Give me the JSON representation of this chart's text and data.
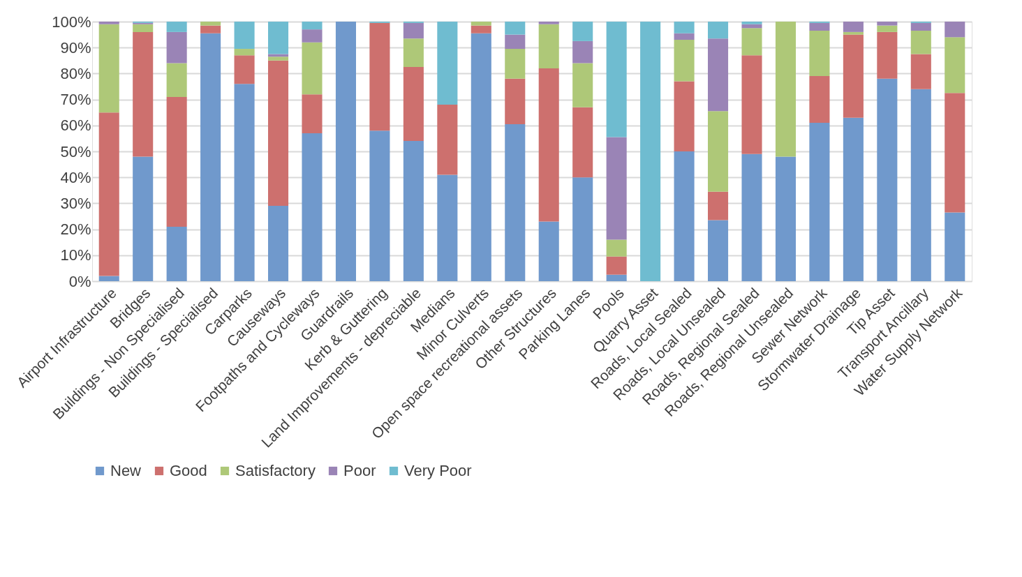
{
  "chart_data": {
    "type": "bar",
    "stacked": true,
    "categories": [
      "Airport Infrastructure",
      "Bridges",
      "Buildings - Non Specialised",
      "Buildings - Specialised",
      "Carparks",
      "Causeways",
      "Footpaths and Cycleways",
      "Guardrails",
      "Kerb & Guttering",
      "Land Improvements - depreciable",
      "Medians",
      "Minor Culverts",
      "Open space recreational assets",
      "Other Structures",
      "Parking Lanes",
      "Pools",
      "Quarry Asset",
      "Roads, Local Sealed",
      "Roads, Local Unsealed",
      "Roads, Regional Sealed",
      "Roads, Regional Unsealed",
      "Sewer Network",
      "Stormwater Drainage",
      "Tip Asset",
      "Transport Ancillary",
      "Water Supply Network"
    ],
    "series": [
      {
        "name": "New",
        "color": "#7099cc",
        "values": [
          2,
          48,
          21,
          95.5,
          76,
          29,
          57,
          100,
          58,
          54,
          41,
          95.5,
          60.5,
          23,
          40,
          2.5,
          0,
          50,
          23.5,
          49,
          48,
          61,
          63,
          78,
          74,
          26.5
        ]
      },
      {
        "name": "Good",
        "color": "#cd706e",
        "values": [
          63,
          48,
          50,
          3,
          11,
          56,
          15,
          0,
          41.5,
          28.5,
          27,
          3,
          17.5,
          59,
          27,
          7,
          0,
          27,
          11,
          38,
          0,
          18,
          32,
          18,
          13.5,
          46
        ]
      },
      {
        "name": "Satisfactory",
        "color": "#aec878",
        "values": [
          34,
          3,
          13,
          1.5,
          2.5,
          1.5,
          20,
          0,
          0,
          11,
          0,
          1.5,
          11.5,
          17,
          17,
          6.5,
          0,
          16,
          31,
          10.5,
          52,
          17.5,
          1,
          2.5,
          9,
          21.5
        ]
      },
      {
        "name": "Poor",
        "color": "#9a84b6",
        "values": [
          1,
          0.5,
          12,
          0,
          0,
          1,
          5,
          0,
          0,
          6,
          0,
          0,
          5.5,
          1,
          8.5,
          39.5,
          0,
          2.5,
          28,
          1.5,
          0,
          3,
          4,
          1.5,
          3,
          6
        ]
      },
      {
        "name": "Very Poor",
        "color": "#6fbcd0",
        "values": [
          0,
          0.5,
          4,
          0,
          10.5,
          12.5,
          3,
          0,
          0.5,
          0.5,
          32,
          0,
          5,
          0,
          7.5,
          44.5,
          100,
          4.5,
          6.5,
          1,
          0,
          0.5,
          0,
          0,
          0.5,
          0
        ]
      }
    ],
    "ylim": [
      0,
      100
    ],
    "yticks": [
      {
        "value": 0,
        "label": "0%"
      },
      {
        "value": 10,
        "label": "10%"
      },
      {
        "value": 20,
        "label": "20%"
      },
      {
        "value": 30,
        "label": "30%"
      },
      {
        "value": 40,
        "label": "40%"
      },
      {
        "value": 50,
        "label": "50%"
      },
      {
        "value": 60,
        "label": "60%"
      },
      {
        "value": 70,
        "label": "70%"
      },
      {
        "value": 80,
        "label": "80%"
      },
      {
        "value": 90,
        "label": "90%"
      },
      {
        "value": 100,
        "label": "100%"
      }
    ],
    "grid": "y",
    "legend": "bottom"
  }
}
